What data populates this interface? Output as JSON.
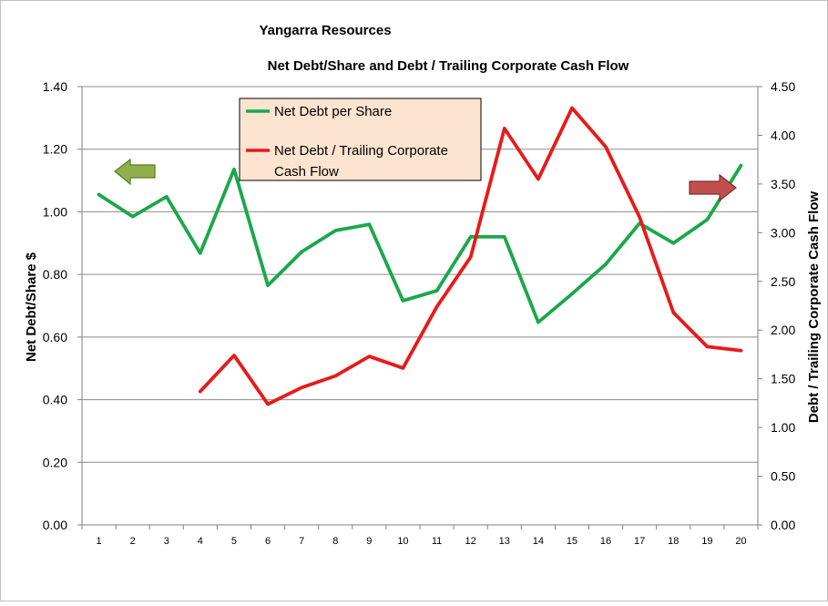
{
  "chart_data": {
    "type": "line",
    "title": "Yangarra Resources",
    "subtitle": "Net Debt/Share and Debt / Trailing Corporate Cash Flow",
    "ylabel_left": "Net Debt/Share $",
    "ylabel_right": "Debt / Trailing Corporate Cash Flow",
    "x": [
      1,
      2,
      3,
      4,
      5,
      6,
      7,
      8,
      9,
      10,
      11,
      12,
      13,
      14,
      15,
      16,
      17,
      18,
      19,
      20
    ],
    "x_tick_labels": [
      "1",
      "2",
      "3",
      "4",
      "5",
      "6",
      "7",
      "8",
      "9",
      "10",
      "11",
      "12",
      "13",
      "14",
      "15",
      "16",
      "17",
      "18",
      "19",
      "20"
    ],
    "ylim_left": [
      0,
      1.4
    ],
    "ylim_right": [
      0,
      4.5
    ],
    "y_ticks_left": [
      "0.00",
      "0.20",
      "0.40",
      "0.60",
      "0.80",
      "1.00",
      "1.20",
      "1.40"
    ],
    "y_ticks_right": [
      "0.00",
      "0.50",
      "1.00",
      "1.50",
      "2.00",
      "2.50",
      "3.00",
      "3.50",
      "4.00",
      "4.50"
    ],
    "grid": true,
    "legend_position": "top-left",
    "series": [
      {
        "name": "Net Debt per Share",
        "axis": "left",
        "color": "#1aa84a",
        "values": [
          1.055,
          0.985,
          1.048,
          0.868,
          1.136,
          0.765,
          0.872,
          0.94,
          0.96,
          0.716,
          0.748,
          0.92,
          0.92,
          0.647,
          0.738,
          0.833,
          0.963,
          0.9,
          0.975,
          1.148
        ]
      },
      {
        "name": "Net Debt / Trailing Corporate Cash Flow",
        "name_lines": [
          "Net Debt / Trailing Corporate",
          "Cash Flow"
        ],
        "axis": "right",
        "color": "#e81a1a",
        "values": [
          null,
          null,
          null,
          1.37,
          1.74,
          1.24,
          1.41,
          1.53,
          1.73,
          1.61,
          2.24,
          2.75,
          4.07,
          3.55,
          4.28,
          3.88,
          3.16,
          2.18,
          1.83,
          1.79
        ]
      }
    ],
    "annotations": [
      {
        "name": "left-axis-arrow",
        "direction": "left",
        "color": "#8fb04a"
      },
      {
        "name": "right-axis-arrow",
        "direction": "right",
        "color": "#c0504d"
      }
    ]
  }
}
